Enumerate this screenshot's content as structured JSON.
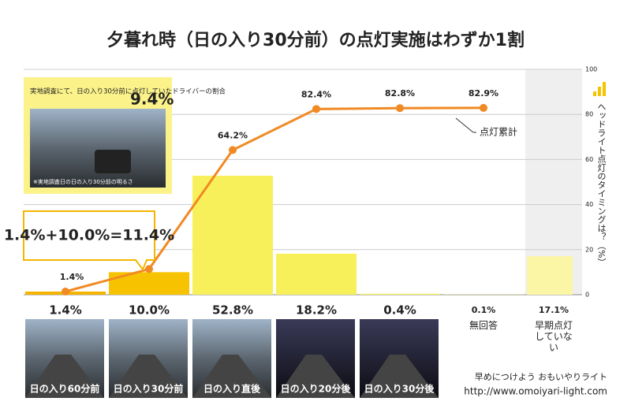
{
  "chart_data": {
    "type": "bar",
    "title": "夕暮れ時（日の入り30分前）の点灯実施はわずか1割",
    "y_label": "ヘッドライト点灯のタイミングは？（%）",
    "categories": [
      "日の入り60分前",
      "日の入り30分前",
      "日の入り直後",
      "日の入り20分後",
      "日の入り30分後",
      "無回答",
      "早期点灯していない"
    ],
    "values": [
      1.4,
      10.0,
      52.8,
      18.2,
      0.4,
      0.1,
      17.1
    ],
    "value_labels": [
      "1.4%",
      "10.0%",
      "52.8%",
      "18.2%",
      "0.4%",
      "0.1%",
      "17.1%"
    ],
    "colors": [
      "#f5b400",
      "#f7c300",
      "#f8f05a",
      "#f8f05a",
      "#f8f05a",
      "#f8f05a",
      "#fbf6a6"
    ],
    "series": [
      {
        "name": "点灯累計",
        "color": "#f08a24",
        "values": [
          1.4,
          11.4,
          64.2,
          82.4,
          82.8,
          82.9,
          null
        ],
        "value_labels": [
          "1.4%",
          null,
          "64.2%",
          "82.4%",
          "82.8%",
          "82.9%",
          null
        ]
      }
    ],
    "ylim": [
      0,
      100
    ],
    "yticks": [
      0,
      20,
      40,
      60,
      80,
      100
    ],
    "grid": true,
    "annotations": {
      "survey": "実地調査にて、日の入り30分前に点灯していたドライバーの割合",
      "survey_value": "9.4%",
      "photo_note": "※実地調査日の日の入り30分前の明るさ",
      "sum": "1.4%+10.0%=11.4%"
    },
    "footer": {
      "slogan": "早めにつけよう おもいやりライト",
      "url": "http://www.omoiyari-light.com"
    }
  }
}
